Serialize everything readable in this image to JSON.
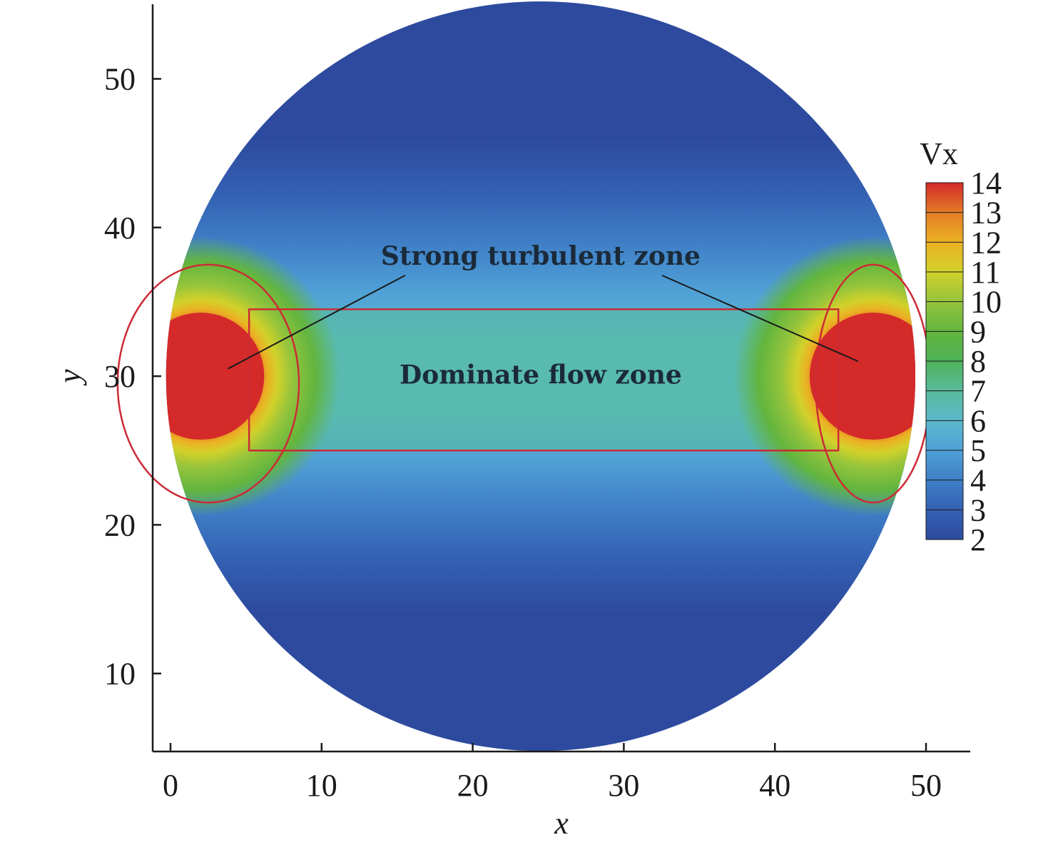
{
  "chart_data": {
    "type": "heatmap",
    "title": "",
    "xlabel": "x",
    "ylabel": "y",
    "xlim": [
      -1.2,
      53
    ],
    "ylim": [
      5,
      55
    ],
    "xticks": [
      0,
      10,
      20,
      30,
      40,
      50
    ],
    "yticks": [
      10,
      20,
      30,
      40,
      50
    ],
    "xtick_labels": [
      "0",
      "10",
      "20",
      "30",
      "40",
      "50"
    ],
    "ytick_labels": [
      "10",
      "20",
      "30",
      "40",
      "50"
    ],
    "domain": {
      "shape": "circle",
      "center": [
        24.5,
        30
      ],
      "radius": 25
    },
    "colorbar": {
      "title": "Vx",
      "min": 2,
      "max": 14,
      "levels": [
        14,
        13,
        12,
        11,
        10,
        9,
        8,
        7,
        6,
        5,
        4,
        3,
        2
      ],
      "labels": [
        "14",
        "13",
        "12",
        "11",
        "10",
        "9",
        "8",
        "7",
        "6",
        "5",
        "4",
        "3",
        "2"
      ],
      "colors": [
        "#2d4a9e",
        "#3461b3",
        "#3f7fc6",
        "#4fa0d6",
        "#5cb8cc",
        "#58bb9c",
        "#4fb258",
        "#62b53e",
        "#94c43c",
        "#d2d12a",
        "#ebb124",
        "#e37c26",
        "#d8432b",
        "#d42a2a"
      ]
    },
    "features": [
      {
        "name": "jet-left",
        "center": [
          2,
          30
        ],
        "radius": 4.2,
        "value": 14
      },
      {
        "name": "jet-right",
        "center": [
          46.5,
          30
        ],
        "radius": 4.2,
        "value": 14
      }
    ],
    "regions": [
      {
        "type": "ellipse",
        "center": [
          2.5,
          29.5
        ],
        "rx": 6,
        "ry": 8
      },
      {
        "type": "ellipse",
        "center": [
          46.5,
          29.5
        ],
        "rx": 3.8,
        "ry": 8
      },
      {
        "type": "rectangle",
        "x": [
          5.2,
          44.2
        ],
        "y": [
          25,
          34.5
        ]
      }
    ],
    "annotations": [
      {
        "text": "Strong turbulent zone",
        "x": 24.5,
        "y": 37.5,
        "arrows_to": [
          [
            3.8,
            30.5
          ],
          [
            45.5,
            31
          ]
        ]
      },
      {
        "text": "Dominate flow zone",
        "x": 24.5,
        "y": 29.5
      }
    ]
  }
}
